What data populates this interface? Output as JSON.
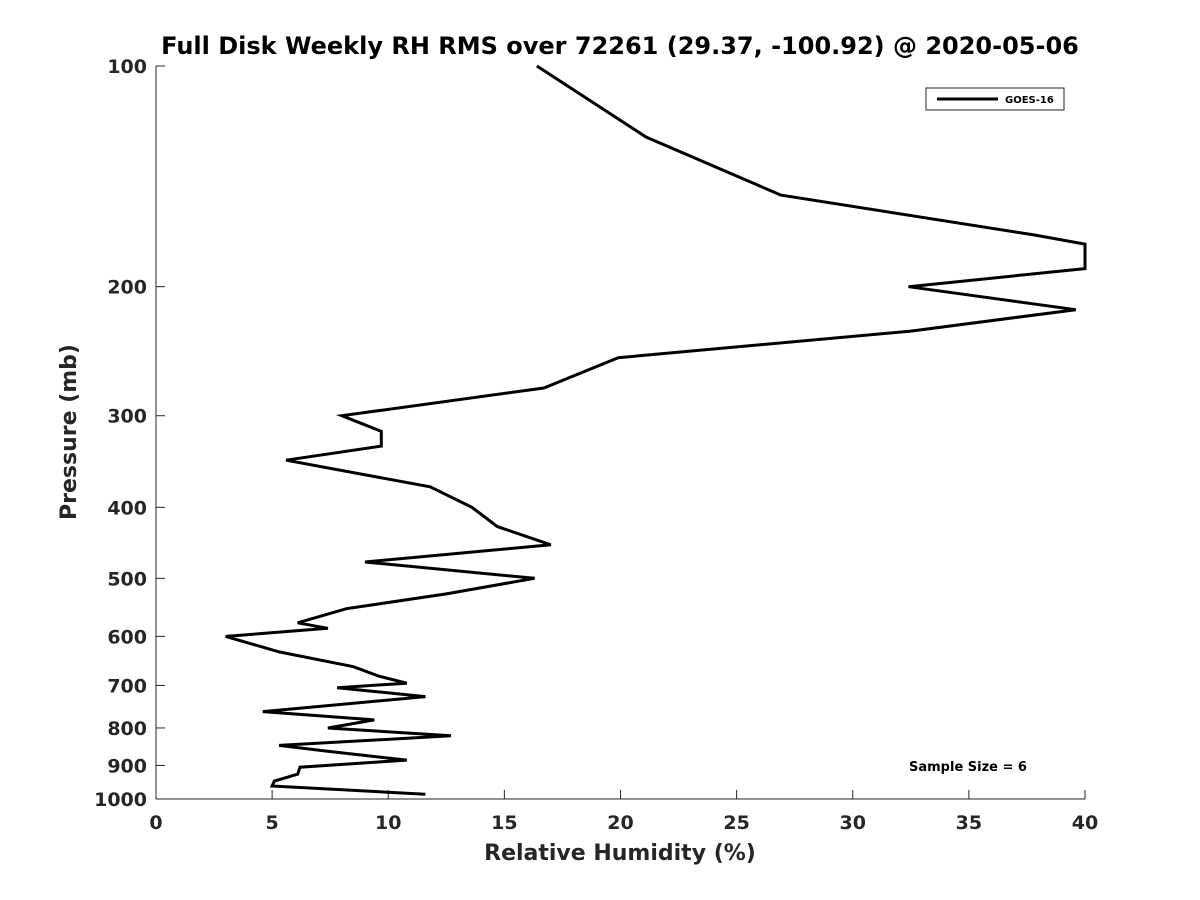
{
  "chart_data": {
    "type": "line",
    "title": "Full Disk Weekly RH RMS over 72261 (29.37, -100.92) @ 2020-05-06",
    "xlabel": "Relative Humidity (%)",
    "ylabel": "Pressure (mb)",
    "xlim": [
      0,
      40
    ],
    "ylim": [
      100,
      1000
    ],
    "y_scale": "log",
    "y_reversed": true,
    "x_ticks": [
      0,
      5,
      10,
      15,
      20,
      25,
      30,
      35,
      40
    ],
    "y_ticks": [
      100,
      200,
      300,
      400,
      500,
      600,
      700,
      800,
      900,
      1000
    ],
    "grid": false,
    "legend_position": "top-right",
    "annotation": "Sample Size = 6",
    "series": [
      {
        "name": "GOES-16",
        "color": "#000000",
        "points": [
          [
            16.4,
            100
          ],
          [
            21.1,
            125
          ],
          [
            26.9,
            150
          ],
          [
            37.8,
            170
          ],
          [
            40.0,
            175
          ],
          [
            40.0,
            189
          ],
          [
            32.4,
            200
          ],
          [
            39.6,
            215
          ],
          [
            32.5,
            230
          ],
          [
            19.9,
            250
          ],
          [
            16.7,
            275
          ],
          [
            8.0,
            300
          ],
          [
            9.7,
            315
          ],
          [
            9.7,
            330
          ],
          [
            5.6,
            345
          ],
          [
            11.8,
            375
          ],
          [
            13.6,
            400
          ],
          [
            14.7,
            425
          ],
          [
            17.0,
            450
          ],
          [
            9.0,
            475
          ],
          [
            16.3,
            500
          ],
          [
            12.5,
            525
          ],
          [
            8.2,
            550
          ],
          [
            6.1,
            575
          ],
          [
            7.4,
            585
          ],
          [
            3.0,
            600
          ],
          [
            5.3,
            630
          ],
          [
            8.5,
            660
          ],
          [
            9.6,
            680
          ],
          [
            10.8,
            695
          ],
          [
            7.8,
            705
          ],
          [
            11.6,
            725
          ],
          [
            4.6,
            760
          ],
          [
            9.4,
            780
          ],
          [
            7.4,
            800
          ],
          [
            12.7,
            820
          ],
          [
            5.3,
            845
          ],
          [
            7.3,
            860
          ],
          [
            10.8,
            885
          ],
          [
            6.2,
            905
          ],
          [
            6.1,
            925
          ],
          [
            5.1,
            945
          ],
          [
            5.0,
            960
          ],
          [
            11.6,
            985
          ]
        ]
      }
    ]
  }
}
